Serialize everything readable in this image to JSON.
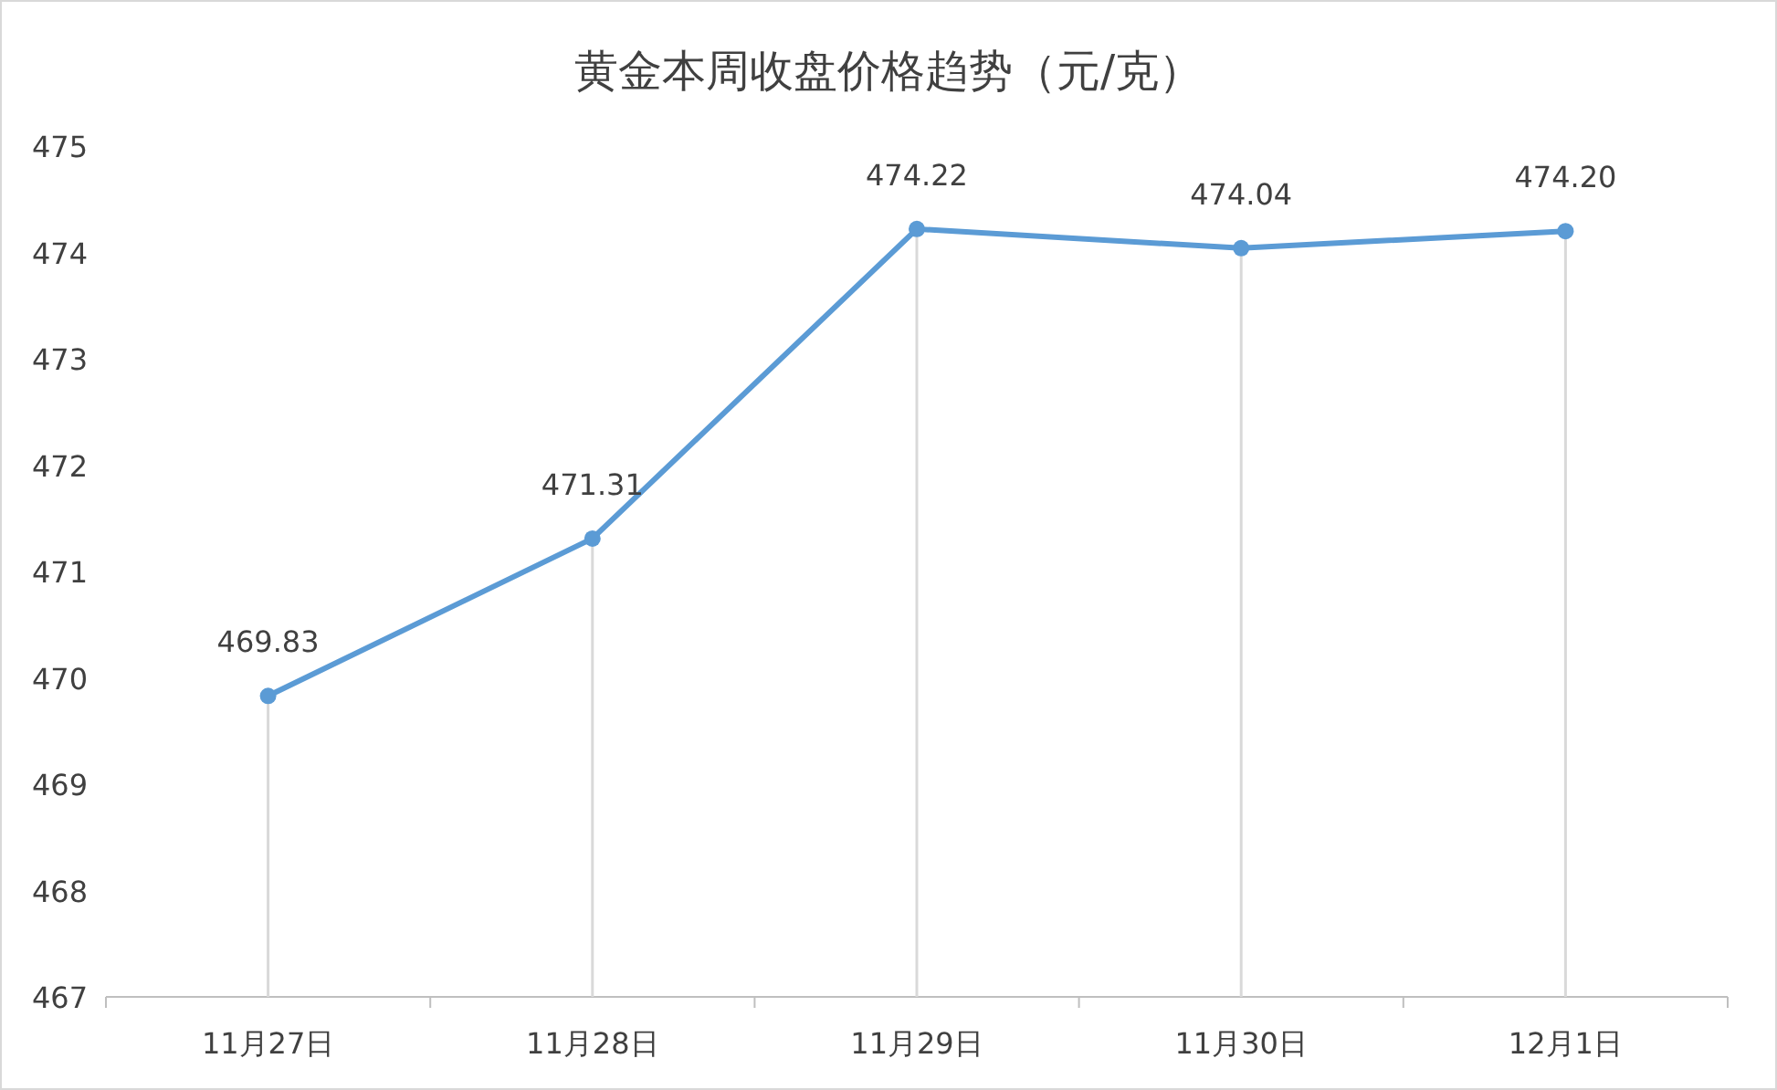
{
  "chart_data": {
    "type": "line",
    "title": "黄金本周收盘价格趋势（元/克）",
    "categories": [
      "11月27日",
      "11月28日",
      "11月29日",
      "11月30日",
      "12月1日"
    ],
    "series": [
      {
        "color": "#5b9bd5",
        "values": [
          469.83,
          471.31,
          474.22,
          474.04,
          474.2
        ],
        "value_labels": [
          "469.83",
          "471.31",
          "474.22",
          "474.04",
          "474.20"
        ]
      }
    ],
    "ylim": [
      467,
      475
    ],
    "yticks": [
      467,
      468,
      469,
      470,
      471,
      472,
      473,
      474,
      475
    ],
    "grid": "x",
    "marker": "circle",
    "line_style": "solid"
  }
}
